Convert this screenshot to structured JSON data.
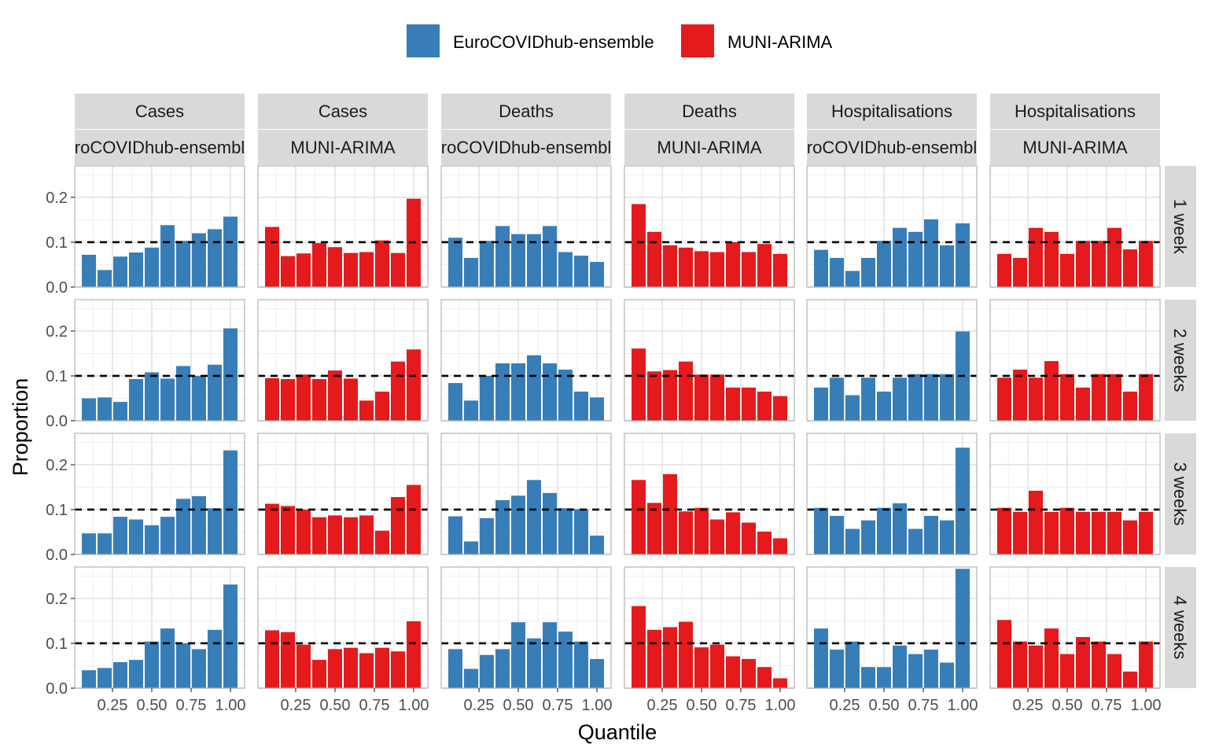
{
  "chart_data": {
    "type": "bar",
    "xlabel": "Quantile",
    "ylabel": "Proportion",
    "ylim": [
      0,
      0.27
    ],
    "xlim": [
      0.01,
      1.09
    ],
    "x_ticks": [
      "0.25",
      "0.50",
      "0.75",
      "1.00"
    ],
    "y_ticks": [
      "0.0",
      "0.1",
      "0.2"
    ],
    "reference_line": 0.1,
    "grid": true,
    "legend_position": "top",
    "legend": [
      {
        "name": "EuroCOVIDhub-ensemble",
        "color": "#377EB8"
      },
      {
        "name": "MUNI-ARIMA",
        "color": "#E41A1C"
      }
    ],
    "x": [
      0.1,
      0.2,
      0.3,
      0.4,
      0.5,
      0.6,
      0.7,
      0.8,
      0.9,
      1.0
    ],
    "columns": [
      {
        "target": "Cases",
        "model": "EuroCOVIDhub-ensemble",
        "model_strip": "roCOVIDhub-ensembl",
        "color": "#377EB8"
      },
      {
        "target": "Cases",
        "model": "MUNI-ARIMA",
        "model_strip": "MUNI-ARIMA",
        "color": "#E41A1C"
      },
      {
        "target": "Deaths",
        "model": "EuroCOVIDhub-ensemble",
        "model_strip": "roCOVIDhub-ensembl",
        "color": "#377EB8"
      },
      {
        "target": "Deaths",
        "model": "MUNI-ARIMA",
        "model_strip": "MUNI-ARIMA",
        "color": "#E41A1C"
      },
      {
        "target": "Hospitalisations",
        "model": "EuroCOVIDhub-ensemble",
        "model_strip": "roCOVIDhub-ensembl",
        "color": "#377EB8"
      },
      {
        "target": "Hospitalisations",
        "model": "MUNI-ARIMA",
        "model_strip": "MUNI-ARIMA",
        "color": "#E41A1C"
      }
    ],
    "rows": [
      "1 week",
      "2 weeks",
      "3 weeks",
      "4 weeks"
    ],
    "panels": [
      [
        [
          0.072,
          0.038,
          0.068,
          0.077,
          0.088,
          0.138,
          0.103,
          0.12,
          0.129,
          0.157
        ],
        [
          0.134,
          0.069,
          0.075,
          0.098,
          0.089,
          0.076,
          0.078,
          0.104,
          0.076,
          0.197
        ],
        [
          0.11,
          0.065,
          0.103,
          0.136,
          0.118,
          0.118,
          0.136,
          0.078,
          0.07,
          0.056
        ],
        [
          0.185,
          0.123,
          0.093,
          0.088,
          0.08,
          0.078,
          0.1,
          0.078,
          0.096,
          0.074
        ],
        [
          0.083,
          0.065,
          0.036,
          0.065,
          0.103,
          0.132,
          0.123,
          0.151,
          0.093,
          0.142
        ],
        [
          0.074,
          0.065,
          0.132,
          0.123,
          0.074,
          0.103,
          0.103,
          0.132,
          0.084,
          0.103
        ]
      ],
      [
        [
          0.05,
          0.052,
          0.042,
          0.093,
          0.108,
          0.094,
          0.122,
          0.1,
          0.125,
          0.206
        ],
        [
          0.095,
          0.093,
          0.103,
          0.093,
          0.112,
          0.094,
          0.045,
          0.065,
          0.132,
          0.159
        ],
        [
          0.084,
          0.045,
          0.1,
          0.128,
          0.128,
          0.146,
          0.128,
          0.114,
          0.065,
          0.052
        ],
        [
          0.161,
          0.11,
          0.113,
          0.132,
          0.103,
          0.103,
          0.074,
          0.074,
          0.065,
          0.055
        ],
        [
          0.074,
          0.096,
          0.057,
          0.096,
          0.065,
          0.096,
          0.104,
          0.104,
          0.104,
          0.199
        ],
        [
          0.096,
          0.114,
          0.096,
          0.133,
          0.104,
          0.074,
          0.104,
          0.104,
          0.065,
          0.104
        ]
      ],
      [
        [
          0.047,
          0.047,
          0.084,
          0.078,
          0.065,
          0.084,
          0.124,
          0.13,
          0.103,
          0.232
        ],
        [
          0.113,
          0.108,
          0.1,
          0.083,
          0.087,
          0.083,
          0.087,
          0.053,
          0.128,
          0.155
        ],
        [
          0.085,
          0.029,
          0.081,
          0.121,
          0.131,
          0.166,
          0.137,
          0.103,
          0.101,
          0.042
        ],
        [
          0.166,
          0.115,
          0.179,
          0.096,
          0.104,
          0.078,
          0.094,
          0.071,
          0.051,
          0.036
        ],
        [
          0.104,
          0.086,
          0.057,
          0.076,
          0.104,
          0.114,
          0.057,
          0.086,
          0.076,
          0.238
        ],
        [
          0.104,
          0.095,
          0.142,
          0.095,
          0.104,
          0.095,
          0.095,
          0.095,
          0.076,
          0.095
        ]
      ],
      [
        [
          0.04,
          0.045,
          0.058,
          0.063,
          0.104,
          0.133,
          0.1,
          0.087,
          0.13,
          0.231
        ],
        [
          0.129,
          0.125,
          0.097,
          0.063,
          0.087,
          0.09,
          0.078,
          0.09,
          0.082,
          0.149
        ],
        [
          0.087,
          0.043,
          0.074,
          0.087,
          0.147,
          0.111,
          0.147,
          0.126,
          0.104,
          0.065
        ],
        [
          0.183,
          0.13,
          0.136,
          0.148,
          0.091,
          0.097,
          0.071,
          0.065,
          0.047,
          0.022
        ],
        [
          0.133,
          0.086,
          0.104,
          0.047,
          0.047,
          0.095,
          0.076,
          0.086,
          0.057,
          0.266
        ],
        [
          0.152,
          0.104,
          0.095,
          0.133,
          0.076,
          0.114,
          0.104,
          0.076,
          0.037,
          0.104
        ]
      ]
    ]
  }
}
